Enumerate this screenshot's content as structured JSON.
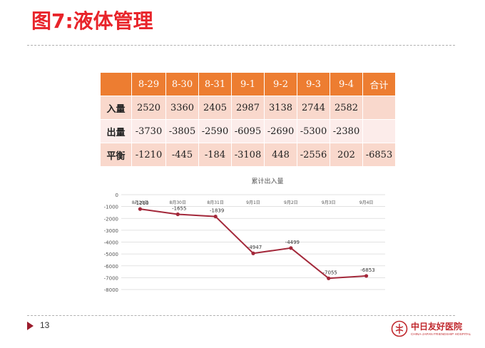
{
  "slide": {
    "title": "图7:液体管理",
    "page_number": "13"
  },
  "table": {
    "headers": [
      "8-29",
      "8-30",
      "8-31",
      "9-1",
      "9-2",
      "9-3",
      "9-4",
      "合计"
    ],
    "rows": [
      {
        "label": "入量",
        "values": [
          "2520",
          "3360",
          "2405",
          "2987",
          "3138",
          "2744",
          "2582",
          ""
        ]
      },
      {
        "label": "出量",
        "values": [
          "-3730",
          "-3805",
          "-2590",
          "-6095",
          "-2690",
          "-5300",
          "-2380",
          ""
        ]
      },
      {
        "label": "平衡",
        "values": [
          "-1210",
          "-445",
          "-184",
          "-3108",
          "448",
          "-2556",
          "202",
          "-6853"
        ]
      }
    ]
  },
  "chart_data": {
    "type": "line",
    "title": "累计出入量",
    "categories": [
      "8月29日",
      "8月30日",
      "8月31日",
      "9月1日",
      "9月2日",
      "9月3日",
      "9月4日"
    ],
    "series": [
      {
        "values": [
          -1210,
          -1655,
          -1839,
          -4947,
          -4499,
          -7055,
          -6853
        ]
      }
    ],
    "data_labels": [
      "-1210",
      "-1655",
      "-1839",
      "-4947",
      "-4499",
      "-7055",
      "-6853"
    ],
    "yticks": [
      0,
      -1000,
      -2000,
      -3000,
      -4000,
      -5000,
      -6000,
      -7000,
      -8000
    ],
    "ylim": [
      -8000,
      0
    ],
    "grid": true,
    "line_color": "#a3283a",
    "xlabel": "",
    "ylabel": ""
  },
  "logo": {
    "name_cn": "中日友好医院",
    "name_en": "CHINA-JAPAN FRIENDSHIP HOSPITAL"
  },
  "colors": {
    "title": "#e8242a",
    "table_header": "#ed7d31",
    "table_row_dark": "#f9d8cc",
    "table_row_light": "#fcecea",
    "chart_line": "#a3283a"
  }
}
